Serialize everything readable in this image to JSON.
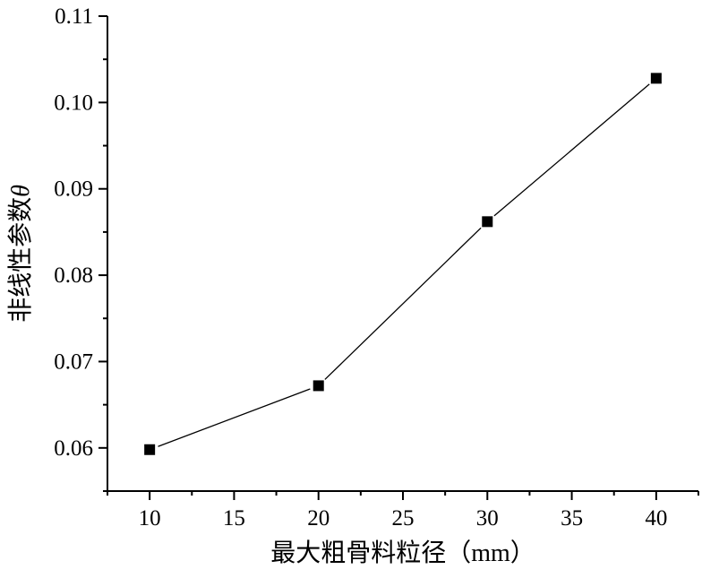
{
  "figure": {
    "background": "#ffffff",
    "axis_color": "#000000"
  },
  "chart_data": {
    "type": "line",
    "x": [
      10,
      20,
      30,
      40
    ],
    "series": [
      {
        "name": "nonlinear-parameter-theta",
        "values": [
          0.0598,
          0.0672,
          0.0862,
          0.1028
        ],
        "line_color": "#000000",
        "marker": "square",
        "marker_color": "#000000"
      }
    ],
    "title": "",
    "xlabel": "最大粗骨料粒径（mm）",
    "ylabel": "非线性参数θ",
    "ylabel_parts": [
      {
        "text": "非线性参数",
        "italic": false
      },
      {
        "text": "θ",
        "italic": true
      }
    ],
    "xlim": [
      7.5,
      42.5
    ],
    "ylim": [
      0.055,
      0.11
    ],
    "x_major_ticks": [
      10,
      15,
      20,
      25,
      30,
      35,
      40
    ],
    "x_minor_ticks": [
      7.5,
      12.5,
      17.5,
      22.5,
      27.5,
      32.5,
      37.5,
      42.5
    ],
    "y_major_ticks": [
      0.06,
      0.07,
      0.08,
      0.09,
      0.1,
      0.11
    ],
    "y_minor_ticks": [
      0.055,
      0.065,
      0.075,
      0.085,
      0.095,
      0.105
    ],
    "y_tick_decimals": 2,
    "grid": false,
    "legend": null,
    "axes_frame": "open-left-bottom",
    "tick_direction": "out"
  }
}
